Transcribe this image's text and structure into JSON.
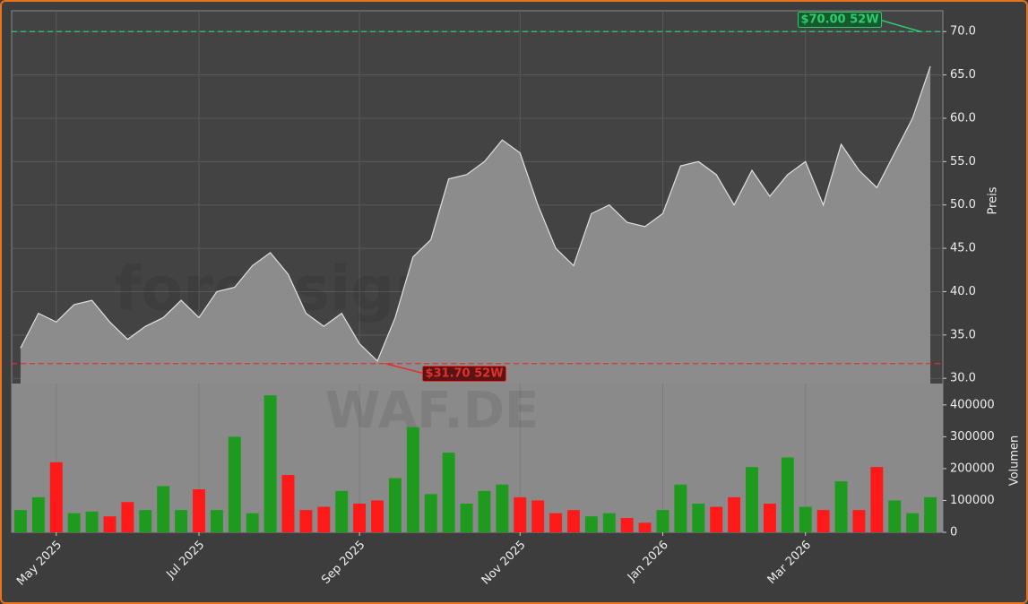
{
  "chart_data": [
    {
      "type": "area",
      "y_label": "Preis",
      "watermark": "forexsignale.trade",
      "color": "#8c8c8c",
      "line_color": "#e0e0e0",
      "values": [
        33.5,
        37.5,
        36.5,
        38.5,
        39.0,
        36.5,
        34.5,
        36.0,
        37.0,
        39.0,
        37.0,
        40.0,
        40.5,
        43.0,
        44.5,
        42.0,
        37.5,
        36.0,
        37.5,
        34.0,
        32.0,
        37.0,
        44.0,
        46.0,
        53.0,
        53.5,
        55.0,
        57.5,
        56.0,
        50.0,
        45.0,
        43.0,
        49.0,
        50.0,
        48.0,
        47.5,
        49.0,
        54.5,
        55.0,
        53.5,
        50.0,
        54.0,
        51.0,
        53.5,
        55.0,
        50.0,
        57.0,
        54.0,
        52.0,
        56.0,
        60.0,
        66.0
      ],
      "ylim": [
        29.4,
        72.4
      ],
      "yticks": [
        {
          "value": 30,
          "label": "30.0"
        },
        {
          "value": 35,
          "label": "35.0"
        },
        {
          "value": 40,
          "label": "40.0"
        },
        {
          "value": 45,
          "label": "45.0"
        },
        {
          "value": 50,
          "label": "50.0"
        },
        {
          "value": 55,
          "label": "55.0"
        },
        {
          "value": 60,
          "label": "60.0"
        },
        {
          "value": 65,
          "label": "65.0"
        },
        {
          "value": 70,
          "label": "70.0"
        }
      ],
      "grid": true,
      "reference_lines": [
        {
          "value": 70,
          "label": "$70.00 52W",
          "color": "#2ecc71"
        },
        {
          "value": 31.7,
          "label": "$31.70 52W",
          "color": "#e03030"
        }
      ]
    },
    {
      "type": "bar",
      "y_label": "Volumen",
      "watermark": "WAF.DE",
      "up_color": "#1e9b1e",
      "down_color": "#ff1a1a",
      "categories": [
        null,
        null,
        "May 2025",
        null,
        null,
        null,
        null,
        null,
        null,
        null,
        "Jul 2025",
        null,
        null,
        null,
        null,
        null,
        null,
        null,
        null,
        "Sep 2025",
        null,
        null,
        null,
        null,
        null,
        null,
        null,
        null,
        "Nov 2025",
        null,
        null,
        null,
        null,
        null,
        null,
        null,
        "Jan 2026",
        null,
        null,
        null,
        null,
        null,
        null,
        null,
        "Mar 2026",
        null,
        null,
        null,
        null,
        null,
        null,
        null
      ],
      "values": [
        70000,
        110000,
        220000,
        60000,
        65000,
        50000,
        95000,
        70000,
        145000,
        70000,
        135000,
        70000,
        300000,
        60000,
        430000,
        180000,
        70000,
        80000,
        130000,
        90000,
        100000,
        170000,
        330000,
        120000,
        250000,
        90000,
        130000,
        150000,
        110000,
        100000,
        60000,
        70000,
        50000,
        60000,
        45000,
        30000,
        70000,
        150000,
        90000,
        80000,
        110000,
        205000,
        90000,
        235000,
        80000,
        70000,
        160000,
        70000,
        205000,
        100000,
        60000,
        110000
      ],
      "ylim": [
        0,
        467000
      ],
      "yticks": [
        0,
        100000,
        200000,
        300000,
        400000
      ]
    }
  ]
}
